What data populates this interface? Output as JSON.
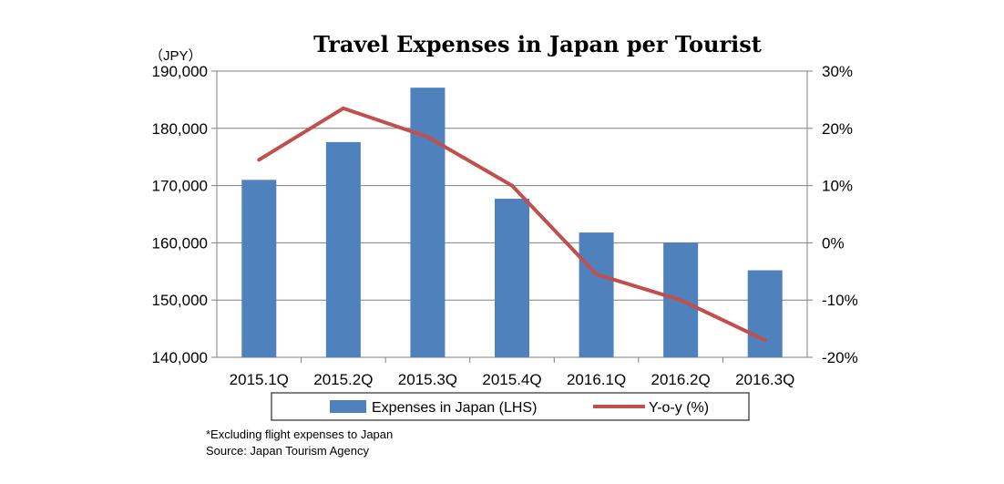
{
  "chart_data": {
    "type": "bar",
    "title": "Travel Expenses in Japan per Tourist",
    "y_unit": "（JPY）",
    "categories": [
      "2015.1Q",
      "2015.2Q",
      "2015.3Q",
      "2015.4Q",
      "2016.1Q",
      "2016.2Q",
      "2016.3Q"
    ],
    "series": [
      {
        "name": "Expenses in Japan (LHS)",
        "type": "bar",
        "axis": "left",
        "color": "#4F81BD",
        "values": [
          171000,
          177600,
          187100,
          167700,
          161800,
          160000,
          155200
        ]
      },
      {
        "name": "Y-o-y (%)",
        "type": "line",
        "axis": "right",
        "color": "#C0504D",
        "values": [
          14.5,
          23.5,
          18.5,
          10.0,
          -5.5,
          -10.0,
          -17.0
        ]
      }
    ],
    "ylim_left": [
      140000,
      190000
    ],
    "yticks_left": [
      "140,000",
      "150,000",
      "160,000",
      "170,000",
      "180,000",
      "190,000"
    ],
    "ylim_right": [
      -20,
      30
    ],
    "yticks_right": [
      "-20%",
      "-10%",
      "0%",
      "10%",
      "20%",
      "30%"
    ],
    "grid": true,
    "legend_position": "bottom"
  },
  "footnotes": [
    "*Excluding flight expenses to Japan",
    "Source: Japan Tourism Agency"
  ]
}
